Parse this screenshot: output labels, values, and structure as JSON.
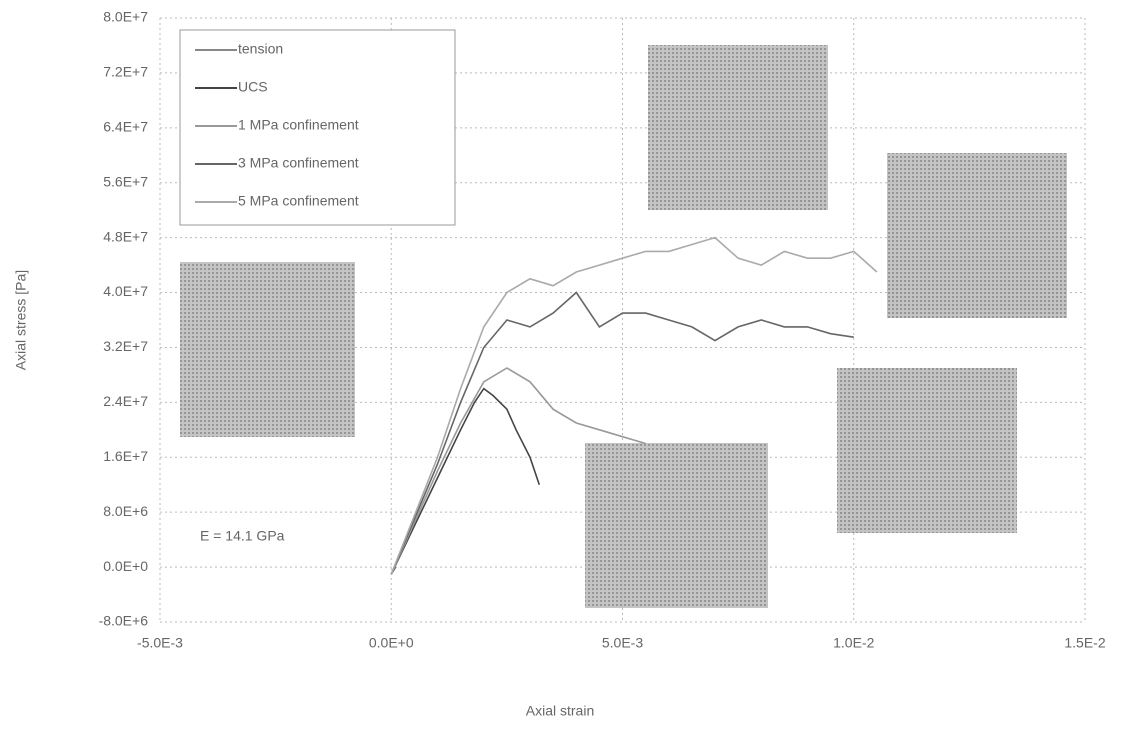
{
  "chart_data": {
    "type": "line",
    "xlabel": "Axial strain",
    "ylabel": "Axial stress [Pa]",
    "annotation": "E = 14.1 GPa",
    "xlim": [
      -0.005,
      0.015
    ],
    "xticks": [
      {
        "value": -0.005,
        "label": "-5.0E-3"
      },
      {
        "value": 0,
        "label": "0.0E+0"
      },
      {
        "value": 0.005,
        "label": "5.0E-3"
      },
      {
        "value": 0.01,
        "label": "1.0E-2"
      },
      {
        "value": 0.015,
        "label": "1.5E-2"
      }
    ],
    "ylim": [
      -8000000,
      80000000
    ],
    "yticks": [
      {
        "value": -8000000,
        "label": "-8.0E+6"
      },
      {
        "value": 0,
        "label": "0.0E+0"
      },
      {
        "value": 8000000,
        "label": "8.0E+6"
      },
      {
        "value": 16000000,
        "label": "1.6E+7"
      },
      {
        "value": 24000000,
        "label": "2.4E+7"
      },
      {
        "value": 32000000,
        "label": "3.2E+7"
      },
      {
        "value": 40000000,
        "label": "4.0E+7"
      },
      {
        "value": 48000000,
        "label": "4.8E+7"
      },
      {
        "value": 56000000,
        "label": "5.6E+7"
      },
      {
        "value": 64000000,
        "label": "6.4E+7"
      },
      {
        "value": 72000000,
        "label": "7.2E+7"
      },
      {
        "value": 80000000,
        "label": "8.0E+7"
      }
    ],
    "grid": true,
    "legend": "upper left",
    "series": [
      {
        "name": "tension",
        "color": "#888888",
        "x": [
          0,
          0.0001
        ],
        "values": [
          -1000000,
          0
        ]
      },
      {
        "name": "UCS",
        "color": "#444444",
        "x": [
          0,
          0.0005,
          0.001,
          0.0015,
          0.0018,
          0.002,
          0.0022,
          0.0025,
          0.0027,
          0.003,
          0.0032
        ],
        "values": [
          -1000000,
          6000000,
          13000000,
          20000000,
          24000000,
          26000000,
          25000000,
          23000000,
          20000000,
          16000000,
          12000000
        ]
      },
      {
        "name": "1 MPa confinement",
        "color": "#999999",
        "x": [
          0,
          0.0005,
          0.001,
          0.0015,
          0.002,
          0.0025,
          0.003,
          0.0035,
          0.004,
          0.0045,
          0.005,
          0.0055
        ],
        "values": [
          -1000000,
          6500000,
          14000000,
          21000000,
          27000000,
          29000000,
          27000000,
          23000000,
          21000000,
          20000000,
          19000000,
          18000000
        ]
      },
      {
        "name": "3 MPa confinement",
        "color": "#666666",
        "x": [
          0,
          0.0005,
          0.001,
          0.0015,
          0.002,
          0.0025,
          0.003,
          0.0035,
          0.004,
          0.0045,
          0.005,
          0.0055,
          0.006,
          0.0065,
          0.007,
          0.0075,
          0.008,
          0.0085,
          0.009,
          0.0095,
          0.01
        ],
        "values": [
          -1000000,
          7000000,
          15000000,
          24000000,
          32000000,
          36000000,
          35000000,
          37000000,
          40000000,
          35000000,
          37000000,
          37000000,
          36000000,
          35000000,
          33000000,
          35000000,
          36000000,
          35000000,
          35000000,
          34000000,
          33500000
        ]
      },
      {
        "name": "5 MPa confinement",
        "color": "#aaaaaa",
        "x": [
          0,
          0.0005,
          0.001,
          0.0015,
          0.002,
          0.0025,
          0.003,
          0.0035,
          0.004,
          0.0045,
          0.005,
          0.0055,
          0.006,
          0.0065,
          0.007,
          0.0075,
          0.008,
          0.0085,
          0.009,
          0.0095,
          0.01,
          0.0105
        ],
        "values": [
          -1000000,
          7500000,
          16000000,
          26000000,
          35000000,
          40000000,
          42000000,
          41000000,
          43000000,
          44000000,
          45000000,
          46000000,
          46000000,
          47000000,
          48000000,
          45000000,
          44000000,
          46000000,
          45000000,
          45000000,
          46000000,
          43000000
        ]
      }
    ]
  }
}
